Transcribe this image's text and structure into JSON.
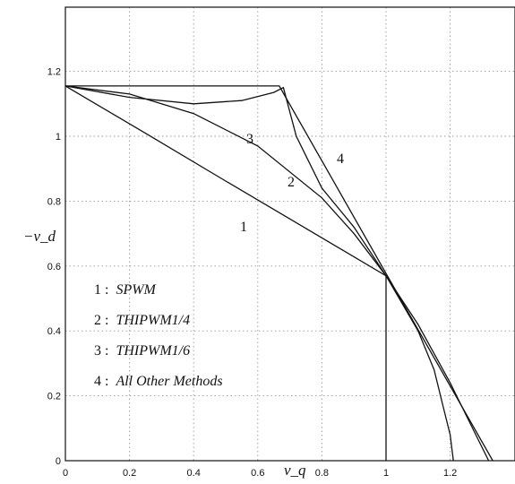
{
  "chart_data": {
    "type": "line",
    "title": "",
    "xlabel": "v_q",
    "ylabel": "−v_d",
    "xlim": [
      0,
      1.4
    ],
    "ylim": [
      0,
      1.4
    ],
    "x_ticks": [
      "0",
      "0.2",
      "0.4",
      "0.6",
      "0.8",
      "1",
      "1.2"
    ],
    "y_ticks": [
      "0",
      "0.2",
      "0.4",
      "0.6",
      "0.8",
      "1",
      "1.2"
    ],
    "grid": true,
    "series": [
      {
        "name": "1 : SPWM",
        "label": "1",
        "x": [
          0,
          0.25,
          0.5,
          0.75,
          1.0,
          1.0
        ],
        "y": [
          1.155,
          1.009,
          0.862,
          0.716,
          0.57,
          0
        ]
      },
      {
        "name": "2 : THIPWM1/4",
        "label": "2",
        "x": [
          0,
          0.2,
          0.4,
          0.55,
          0.65,
          0.68,
          0.72,
          0.8,
          0.9,
          1.0,
          1.1,
          1.15,
          1.18,
          1.2,
          1.21
        ],
        "y": [
          1.155,
          1.12,
          1.1,
          1.11,
          1.135,
          1.15,
          1.0,
          0.84,
          0.72,
          0.57,
          0.4,
          0.28,
          0.16,
          0.08,
          0
        ]
      },
      {
        "name": "3 : THIPWM1/6",
        "label": "3",
        "x": [
          0,
          0.2,
          0.4,
          0.6,
          0.8,
          0.9,
          1.0,
          1.1,
          1.2,
          1.28,
          1.32
        ],
        "y": [
          1.155,
          1.13,
          1.07,
          0.97,
          0.81,
          0.7,
          0.57,
          0.42,
          0.24,
          0.08,
          0
        ]
      },
      {
        "name": "4 : All Other Methods",
        "label": "4",
        "x": [
          0,
          0.667,
          1.0,
          1.333
        ],
        "y": [
          1.155,
          1.155,
          0.577,
          0
        ]
      }
    ],
    "legend": {
      "placement": "lower-left",
      "entries": [
        {
          "num": "1 :",
          "text": "SPWM"
        },
        {
          "num": "2 :",
          "text": "THIPWM1/4"
        },
        {
          "num": "3 :",
          "text": "THIPWM1/6"
        },
        {
          "num": "4 :",
          "text": "All Other Methods"
        }
      ]
    }
  }
}
